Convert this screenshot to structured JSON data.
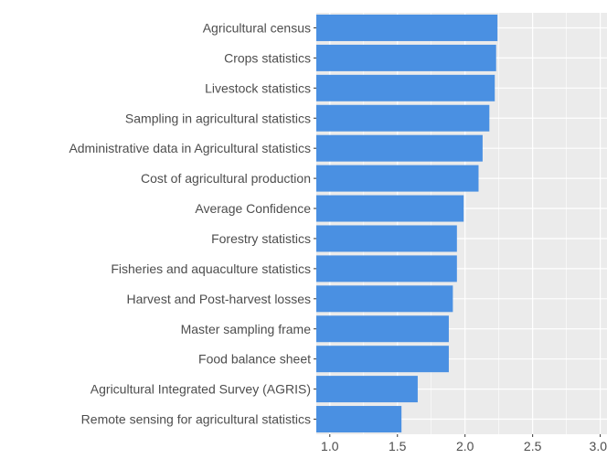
{
  "chart_data": {
    "type": "bar",
    "orientation": "horizontal",
    "title": "",
    "xlabel": "",
    "ylabel": "",
    "categories": [
      "Agricultural census",
      "Crops statistics",
      "Livestock statistics",
      "Sampling in agricultural statistics",
      "Administrative data in Agricultural statistics",
      "Cost of agricultural production",
      "Average Confidence",
      "Forestry statistics",
      "Fisheries and aquaculture statistics",
      "Harvest and Post-harvest losses",
      "Master sampling frame",
      "Food balance sheet",
      "Agricultural Integrated Survey (AGRIS)",
      "Remote sensing for agricultural statistics"
    ],
    "values": [
      2.24,
      2.23,
      2.22,
      2.18,
      2.13,
      2.1,
      1.99,
      1.94,
      1.94,
      1.91,
      1.88,
      1.88,
      1.65,
      1.53
    ],
    "xlim": [
      0.9,
      3.05
    ],
    "x_ticks": [
      1.0,
      1.5,
      2.0,
      2.5,
      3.0
    ],
    "x_tick_labels": [
      "1.0",
      "1.5",
      "2.0",
      "2.5",
      "3.0"
    ],
    "grid": true,
    "legend": "none",
    "colors": {
      "bar": "#4a90e2",
      "panel_background": "#ebebeb",
      "grid_major": "#ffffff",
      "text": "#4d4d4d",
      "tick": "#333333"
    }
  }
}
